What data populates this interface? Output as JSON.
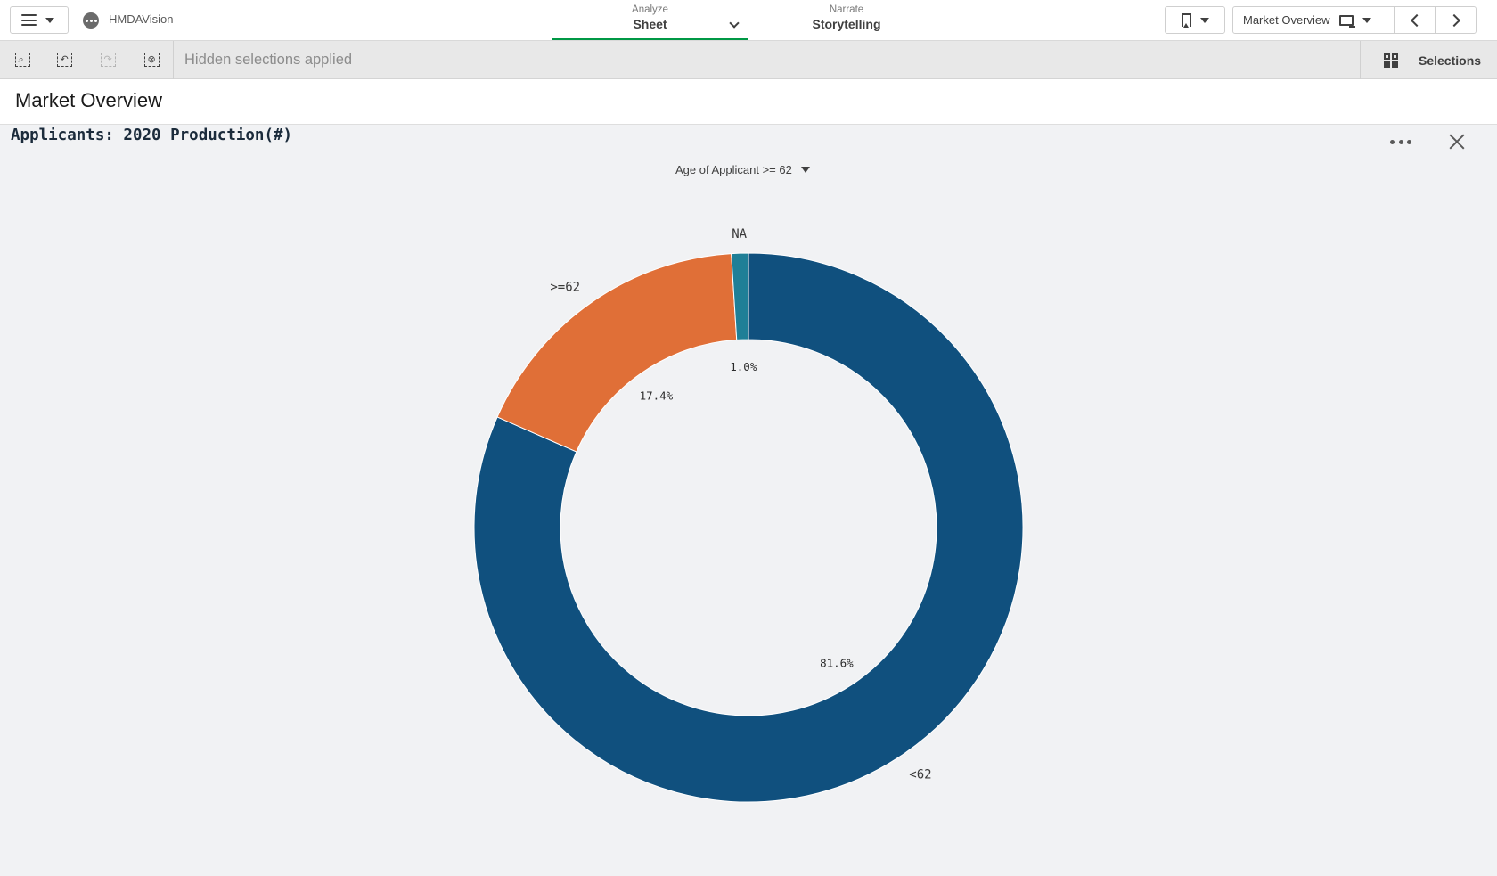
{
  "app": {
    "name": "HMDAVision"
  },
  "nav": {
    "analyze": {
      "small": "Analyze",
      "big": "Sheet"
    },
    "narrate": {
      "small": "Narrate",
      "big": "Storytelling"
    }
  },
  "toolbar": {
    "sheet_label": "Market Overview"
  },
  "selections_bar": {
    "status_text": "Hidden selections applied",
    "selections_label": "Selections"
  },
  "sheet": {
    "title": "Market Overview"
  },
  "chart_panel": {
    "dimension_selector": "Age of Applicant >= 62"
  },
  "chart_data": {
    "type": "pie",
    "style": "donut",
    "title": "Applicants: 2020 Production(#)",
    "slices": [
      {
        "label": "<62",
        "percent": 81.6,
        "pct_label": "81.6%",
        "color": "#10507e"
      },
      {
        "label": ">=62",
        "percent": 17.4,
        "pct_label": "17.4%",
        "color": "#e06f37"
      },
      {
        "label": "NA",
        "percent": 1.0,
        "pct_label": "1.0%",
        "color": "#1f7f97"
      }
    ],
    "legend": "none"
  },
  "icons": {
    "menu": "hamburger-icon",
    "app": "app-icon",
    "bookmark": "bookmark-icon",
    "sheet": "monitor-icon",
    "smart_search": "smart-search-icon",
    "step_back": "step-back-icon",
    "step_forward": "step-forward-icon",
    "clear_all": "clear-selections-icon",
    "more": "more-icon",
    "close": "close-icon"
  }
}
